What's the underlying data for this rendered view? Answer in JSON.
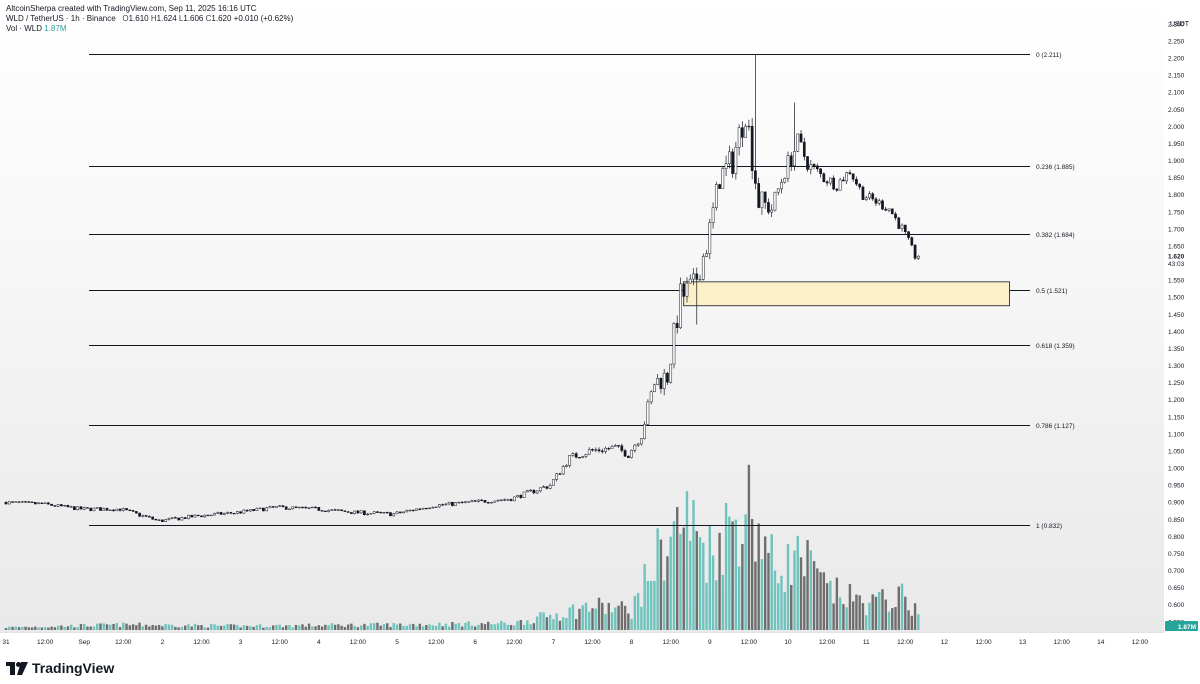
{
  "header": {
    "credit": "AltcoinSherpa created with TradingView.com, Sep 11, 2025 16:16 UTC",
    "symbol": "WLD / TetherUS · 1h · Binance",
    "ohlc": {
      "o_label": "O",
      "o": "1.610",
      "h_label": "H",
      "h": "1.624",
      "l_label": "L",
      "l": "1.606",
      "c_label": "C",
      "c": "1.620",
      "change": "+0.010 (+0.62%)"
    },
    "volume_label": "Vol · WLD",
    "volume_value": "1.87M"
  },
  "footer": {
    "brand": "TradingView",
    "logo_icon": "tradingview-logo-icon"
  },
  "colors": {
    "fib_line": "#131722",
    "zone_fill": "#fbf0c8",
    "zone_border": "#131722",
    "volume_up": "#6fc3bd",
    "volume_down": "#6e6e6e",
    "candle": "#131722",
    "price_badge": "#26a69a"
  },
  "chart_data": {
    "type": "candlestick",
    "title": "WLD / TetherUS · 1h · Binance",
    "y_axis": {
      "unit": "USDT",
      "ylim": [
        0.52,
        2.37
      ],
      "ticks": [
        "2.300",
        "2.250",
        "2.200",
        "2.150",
        "2.100",
        "2.050",
        "2.000",
        "1.950",
        "1.900",
        "1.850",
        "1.800",
        "1.750",
        "1.700",
        "1.650",
        "1.550",
        "1.500",
        "1.450",
        "1.400",
        "1.350",
        "1.300",
        "1.250",
        "1.200",
        "1.150",
        "1.100",
        "1.050",
        "1.000",
        "0.950",
        "0.900",
        "0.850",
        "0.800",
        "0.750",
        "0.700",
        "0.650",
        "0.600",
        "0.550"
      ],
      "current_price": "1.620",
      "countdown": "43:03",
      "volume_badge": "1.87M"
    },
    "x_axis": {
      "ticks": [
        "31",
        "12:00",
        "Sep",
        "12:00",
        "2",
        "12:00",
        "3",
        "12:00",
        "4",
        "12:00",
        "5",
        "12:00",
        "6",
        "12:00",
        "7",
        "12:00",
        "8",
        "12:00",
        "9",
        "12:00",
        "10",
        "12:00",
        "11",
        "12:00",
        "12",
        "12:00",
        "13",
        "12:00",
        "14",
        "12:00"
      ]
    },
    "fib_levels": [
      {
        "label": "0 (2.211)",
        "value": 2.211
      },
      {
        "label": "0.236 (1.885)",
        "value": 1.885
      },
      {
        "label": "0.382 (1.684)",
        "value": 1.684
      },
      {
        "label": "0.5 (1.521)",
        "value": 1.521
      },
      {
        "label": "0.618 (1.359)",
        "value": 1.359
      },
      {
        "label": "0.786 (1.127)",
        "value": 1.127
      },
      {
        "label": "1 (0.832)",
        "value": 0.832
      }
    ],
    "highlight_zone": {
      "from": "2025-09-08 16:00",
      "to": "2025-09-12 20:00",
      "low": 1.475,
      "high": 1.545
    },
    "price_path": [
      {
        "t": "2025-08-31 00:00",
        "p": 0.9
      },
      {
        "t": "2025-08-31 12:00",
        "p": 0.895
      },
      {
        "t": "2025-09-01 00:00",
        "p": 0.88
      },
      {
        "t": "2025-09-01 12:00",
        "p": 0.88
      },
      {
        "t": "2025-09-02 00:00",
        "p": 0.845
      },
      {
        "t": "2025-09-02 12:00",
        "p": 0.86
      },
      {
        "t": "2025-09-03 00:00",
        "p": 0.87
      },
      {
        "t": "2025-09-03 12:00",
        "p": 0.885
      },
      {
        "t": "2025-09-04 00:00",
        "p": 0.88
      },
      {
        "t": "2025-09-04 12:00",
        "p": 0.87
      },
      {
        "t": "2025-09-05 00:00",
        "p": 0.865
      },
      {
        "t": "2025-09-05 12:00",
        "p": 0.89
      },
      {
        "t": "2025-09-06 00:00",
        "p": 0.9
      },
      {
        "t": "2025-09-06 12:00",
        "p": 0.91
      },
      {
        "t": "2025-09-07 00:00",
        "p": 0.95
      },
      {
        "t": "2025-09-07 06:00",
        "p": 1.03
      },
      {
        "t": "2025-09-07 12:00",
        "p": 1.05
      },
      {
        "t": "2025-09-07 20:00",
        "p": 1.06
      },
      {
        "t": "2025-09-08 00:00",
        "p": 1.04
      },
      {
        "t": "2025-09-08 04:00",
        "p": 1.1
      },
      {
        "t": "2025-09-08 08:00",
        "p": 1.25
      },
      {
        "t": "2025-09-08 12:00",
        "p": 1.27
      },
      {
        "t": "2025-09-08 16:00",
        "p": 1.5
      },
      {
        "t": "2025-09-08 20:00",
        "p": 1.53
      },
      {
        "t": "2025-09-09 00:00",
        "p": 1.65
      },
      {
        "t": "2025-09-09 04:00",
        "p": 1.85
      },
      {
        "t": "2025-09-09 08:00",
        "p": 1.9
      },
      {
        "t": "2025-09-09 12:00",
        "p": 2.05
      },
      {
        "t": "2025-09-09 16:00",
        "p": 1.78
      },
      {
        "t": "2025-09-09 20:00",
        "p": 1.76
      },
      {
        "t": "2025-09-10 00:00",
        "p": 1.87
      },
      {
        "t": "2025-09-10 04:00",
        "p": 1.95
      },
      {
        "t": "2025-09-10 08:00",
        "p": 1.88
      },
      {
        "t": "2025-09-10 12:00",
        "p": 1.85
      },
      {
        "t": "2025-09-10 16:00",
        "p": 1.83
      },
      {
        "t": "2025-09-10 20:00",
        "p": 1.87
      },
      {
        "t": "2025-09-11 00:00",
        "p": 1.8
      },
      {
        "t": "2025-09-11 08:00",
        "p": 1.76
      },
      {
        "t": "2025-09-11 12:00",
        "p": 1.7
      },
      {
        "t": "2025-09-11 16:00",
        "p": 1.62
      }
    ],
    "wick_events": [
      {
        "t": "2025-09-09 14:00",
        "high": 2.211
      },
      {
        "t": "2025-09-10 02:00",
        "high": 2.07
      },
      {
        "t": "2025-09-08 20:00",
        "low": 1.42
      }
    ],
    "volume_path": [
      {
        "t": "2025-08-31 00:00",
        "v": 0.02
      },
      {
        "t": "2025-09-01 12:00",
        "v": 0.04
      },
      {
        "t": "2025-09-03 00:00",
        "v": 0.03
      },
      {
        "t": "2025-09-05 00:00",
        "v": 0.04
      },
      {
        "t": "2025-09-06 12:00",
        "v": 0.05
      },
      {
        "t": "2025-09-07 12:00",
        "v": 0.18
      },
      {
        "t": "2025-09-08 00:00",
        "v": 0.15
      },
      {
        "t": "2025-09-08 08:00",
        "v": 0.55
      },
      {
        "t": "2025-09-08 16:00",
        "v": 0.85
      },
      {
        "t": "2025-09-09 00:00",
        "v": 0.6
      },
      {
        "t": "2025-09-09 12:00",
        "v": 0.95
      },
      {
        "t": "2025-09-09 20:00",
        "v": 0.45
      },
      {
        "t": "2025-09-10 04:00",
        "v": 0.55
      },
      {
        "t": "2025-09-10 12:00",
        "v": 0.3
      },
      {
        "t": "2025-09-11 00:00",
        "v": 0.2
      },
      {
        "t": "2025-09-11 12:00",
        "v": 0.25
      },
      {
        "t": "2025-09-11 16:00",
        "v": 0.12
      }
    ]
  }
}
